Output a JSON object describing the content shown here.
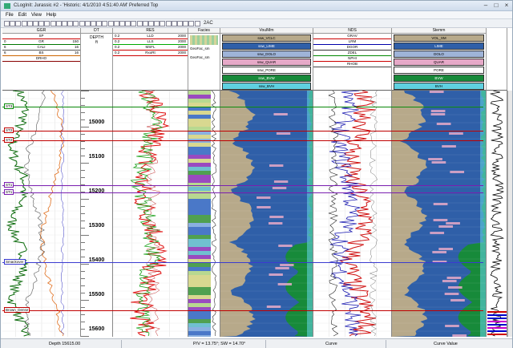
{
  "window": {
    "title": "CLogInit: Jurassic #2 - 'Historic: 4/1/2010 4:51:40 AM' Preferred Top",
    "controls": [
      "–",
      "□",
      "×"
    ]
  },
  "menu": [
    "File",
    "Edit",
    "View",
    "Help"
  ],
  "toolbar": {
    "zoom_label": "2AC"
  },
  "tracks": {
    "gr": {
      "title": "GGR",
      "curves": [
        {
          "name": "SP",
          "min": "",
          "max": ""
        },
        {
          "name": "GR",
          "min": "0",
          "max": "150"
        },
        {
          "name": "CALI",
          "min": "6",
          "max": "16"
        },
        {
          "name": "BS",
          "min": "6",
          "max": "16"
        },
        {
          "name": "DRHO",
          "min": "",
          "max": ""
        }
      ]
    },
    "depth": {
      "title": "DT",
      "sub": "DEPTH",
      "unit": "ft"
    },
    "res": {
      "title": "RES",
      "curves": [
        {
          "name": "LLD",
          "min": "0.2",
          "max": "2000"
        },
        {
          "name": "LLS",
          "min": "0.2",
          "max": "2000"
        },
        {
          "name": "MSFL",
          "min": "0.2",
          "max": "2000"
        },
        {
          "name": "RxoRt",
          "min": "0.2",
          "max": "2000"
        }
      ]
    },
    "facies": {
      "title": "Facies",
      "items": [
        "GeoFac_sm",
        "GeoFac_sm"
      ]
    },
    "vol1": {
      "title": "VoulMm",
      "fills": [
        "ssw_VCLC",
        "ssw_LIME",
        "ssw_DOLO",
        "ssw_QUAR",
        "ssw_PORE",
        "ssw_BVW",
        "ssw_BVH"
      ]
    },
    "nds": {
      "title": "NDS",
      "curves": [
        {
          "name": "GRAV",
          "min": "",
          "max": ""
        },
        {
          "name": "LRM",
          "min": "",
          "max": ""
        },
        {
          "name": "DGOR",
          "min": "",
          "max": ""
        },
        {
          "name": "ZDEL",
          "min": "",
          "max": ""
        },
        {
          "name": "NPHI",
          "min": "",
          "max": ""
        },
        {
          "name": "RHOB",
          "min": "",
          "max": ""
        }
      ]
    },
    "vol2": {
      "title": "Stemm",
      "fills": [
        "VOL_SM",
        "LIME",
        "DOLO",
        "QUAR",
        "PORE",
        "BVW",
        "BVH"
      ]
    }
  },
  "depths": [
    "15000",
    "15100",
    "15200",
    "15300",
    "15400",
    "15500",
    "15600"
  ],
  "tops": [
    {
      "label": "ST3",
      "color": "#0a8a0a"
    },
    {
      "label": "ST2",
      "color": "#c00000"
    },
    {
      "label": "ST2",
      "color": "#c00000"
    },
    {
      "label": "ST1",
      "color": "#7a1fb0"
    },
    {
      "label": "ST1",
      "color": "#7a1fb0"
    },
    {
      "label": "Smackover",
      "color": "#3a3ad0"
    },
    {
      "label": "Brown_Dense",
      "color": "#c00000"
    }
  ],
  "status": {
    "depth": "Depth 15615.00",
    "pos": "P/V = 13.75°; SW = 14.70°",
    "curve": "Curve",
    "curve_value": "Curve Value"
  },
  "colors": {
    "fill_blue": "#2f5fa8",
    "fill_tan": "#b7a98a",
    "fill_pink": "#e6a9c8",
    "fill_green": "#178a3a",
    "fill_cyan": "#5fd0e0",
    "gr_curve": "#0a6a0a",
    "res_red": "#e01010",
    "res_green": "#18a018"
  }
}
